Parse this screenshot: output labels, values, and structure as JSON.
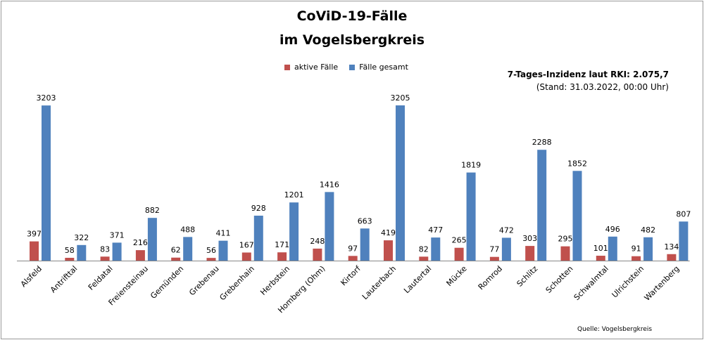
{
  "chart_data": {
    "type": "bar",
    "title": "CoViD-19-Fälle",
    "subtitle": "im Vogelsbergkreis",
    "categories": [
      "Alsfeld",
      "Antrifttal",
      "Feldatal",
      "Freiensteinau",
      "Gemünden",
      "Grebenau",
      "Grebenhain",
      "Herbstein",
      "Homberg (Ohm)",
      "Kirtorf",
      "Lauterbach",
      "Lautertal",
      "Mücke",
      "Romrod",
      "Schlitz",
      "Schotten",
      "Schwalmtal",
      "Ulrichstein",
      "Wartenberg"
    ],
    "series": [
      {
        "name": "aktive Fälle",
        "color": "#c0504d",
        "values": [
          397,
          58,
          83,
          216,
          62,
          56,
          167,
          171,
          248,
          97,
          419,
          82,
          265,
          77,
          303,
          295,
          101,
          91,
          134
        ]
      },
      {
        "name": "Fälle gesamt",
        "color": "#4f81bd",
        "values": [
          3203,
          322,
          371,
          882,
          488,
          411,
          928,
          1201,
          1416,
          663,
          3205,
          477,
          1819,
          472,
          2288,
          1852,
          496,
          482,
          807
        ]
      }
    ],
    "ylim": [
      0,
      3205
    ],
    "grid": false,
    "legend_position": "top-center",
    "annotation_line1": "7-Tages-Inzidenz laut RKI: 2.075,7",
    "annotation_line2": "(Stand: 31.03.2022, 00:00 Uhr)",
    "source": "Quelle: Vogelsbergkreis"
  }
}
